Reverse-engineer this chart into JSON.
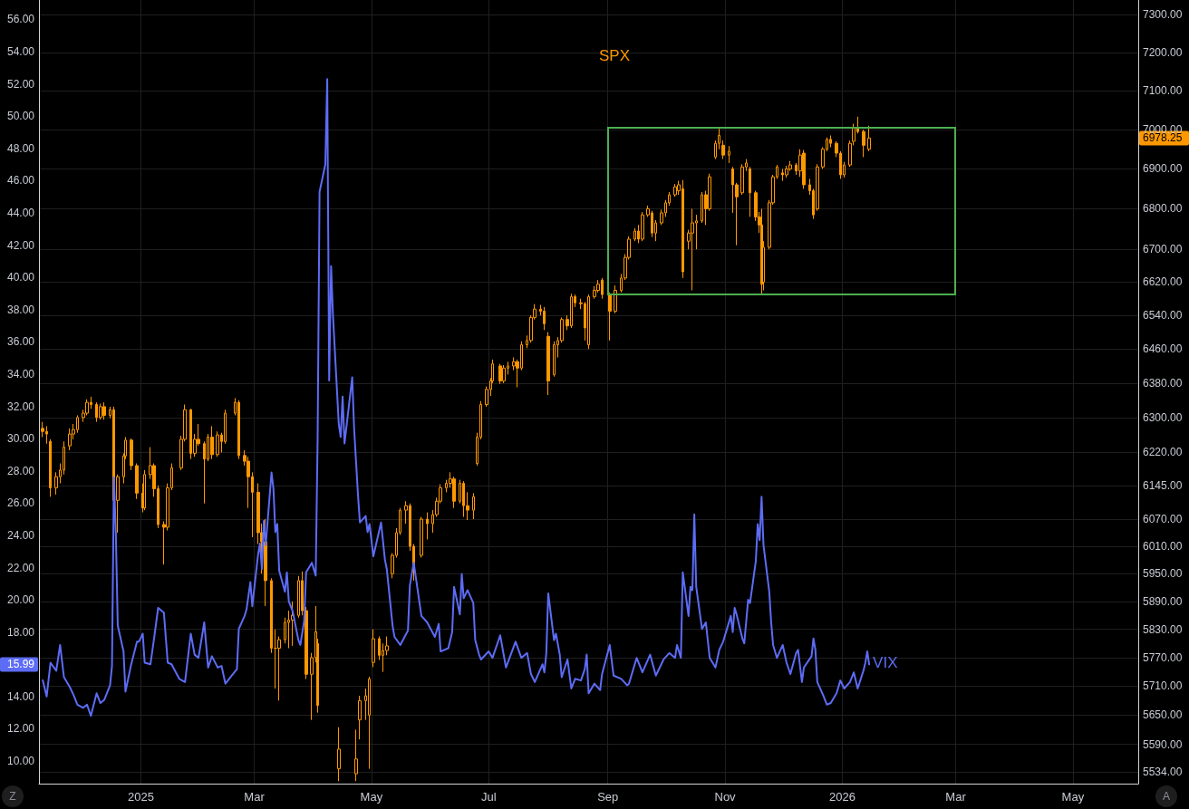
{
  "chart_data": {
    "type": "candlestick",
    "xlim": [
      "2024-11-09",
      "2026-06-04"
    ],
    "xticks": [
      {
        "value": "2025-01-01",
        "label": "2025"
      },
      {
        "value": "2025-03-01",
        "label": "Mar"
      },
      {
        "value": "2025-05-01",
        "label": "May"
      },
      {
        "value": "2025-07-01",
        "label": "Jul"
      },
      {
        "value": "2025-09-01",
        "label": "Sep"
      },
      {
        "value": "2025-11-01",
        "label": "Nov"
      },
      {
        "value": "2026-01-01",
        "label": "2026"
      },
      {
        "value": "2026-03-01",
        "label": "Mar"
      },
      {
        "value": "2026-05-01",
        "label": "May"
      }
    ],
    "ylim": [
      8.6,
      57.2
    ],
    "yticks": [
      {
        "value": 10,
        "label": "10.00"
      },
      {
        "value": 12,
        "label": "12.00"
      },
      {
        "value": 14,
        "label": "14.00"
      },
      15.99,
      {
        "value": 18,
        "label": "18.00"
      },
      {
        "value": 20,
        "label": "20.00"
      },
      {
        "value": 22,
        "label": "22.00"
      },
      {
        "value": 24,
        "label": "24.00"
      },
      {
        "value": 26,
        "label": "26.00"
      },
      {
        "value": 28,
        "label": "28.00"
      },
      {
        "value": 30,
        "label": "30.00"
      },
      {
        "value": 32,
        "label": "32.00"
      },
      {
        "value": 34,
        "label": "34.00"
      },
      {
        "value": 36,
        "label": "36.00"
      },
      {
        "value": 38,
        "label": "38.00"
      },
      {
        "value": 40,
        "label": "40.00"
      },
      {
        "value": 42,
        "label": "42.00"
      },
      {
        "value": 44,
        "label": "44.00"
      },
      {
        "value": 46,
        "label": "46.00"
      },
      {
        "value": 48,
        "label": "48.00"
      },
      {
        "value": 50,
        "label": "50.00"
      },
      {
        "value": 52,
        "label": "52.00"
      },
      {
        "value": 54,
        "label": "54.00"
      },
      {
        "value": 56,
        "label": "56.00"
      }
    ],
    "y2lim": [
      5510,
      7340
    ],
    "y2ticks": [
      {
        "value": 5534,
        "label": "5534.00"
      },
      {
        "value": 5590,
        "label": "5590.00"
      },
      {
        "value": 5650,
        "label": "5650.00"
      },
      {
        "value": 5710,
        "label": "5710.00"
      },
      {
        "value": 5770,
        "label": "5770.00"
      },
      {
        "value": 5830,
        "label": "5830.00"
      },
      {
        "value": 5890,
        "label": "5890.00"
      },
      {
        "value": 5950,
        "label": "5950.00"
      },
      {
        "value": 6010,
        "label": "6010.00"
      },
      {
        "value": 6070,
        "label": "6070.00"
      },
      {
        "value": 6145,
        "label": "6145.00"
      },
      {
        "value": 6220,
        "label": "6220.00"
      },
      {
        "value": 6300,
        "label": "6300.00"
      },
      {
        "value": 6380,
        "label": "6380.00"
      },
      {
        "value": 6460,
        "label": "6460.00"
      },
      {
        "value": 6540,
        "label": "6540.00"
      },
      {
        "value": 6620,
        "label": "6620.00"
      },
      {
        "value": 6700,
        "label": "6700.00"
      },
      {
        "value": 6800,
        "label": "6800.00"
      },
      {
        "value": 6900,
        "label": "6900.00"
      },
      6978.25,
      {
        "value": 7000,
        "label": "7000.00"
      },
      {
        "value": 7100,
        "label": "7100.00"
      },
      {
        "value": 7200,
        "label": "7200.00"
      },
      {
        "value": 7300,
        "label": "7300.00"
      }
    ],
    "log": "y2",
    "grid": true,
    "series": [
      {
        "name": "SPX",
        "axis": "y2",
        "color": "#ff9800",
        "x": [
          "2024-11-11",
          "2024-11-13",
          "2024-11-15",
          "2024-11-18",
          "2024-11-20",
          "2024-11-22",
          "2024-11-25",
          "2024-11-27",
          "2024-11-29",
          "2024-12-02",
          "2024-12-04",
          "2024-12-06",
          "2024-12-09",
          "2024-12-11",
          "2024-12-13",
          "2024-12-16",
          "2024-12-18",
          "2024-12-20",
          "2024-12-23",
          "2024-12-24",
          "2024-12-27",
          "2024-12-30",
          "2025-01-02",
          "2025-01-03",
          "2025-01-06",
          "2025-01-08",
          "2025-01-10",
          "2025-01-13",
          "2025-01-15",
          "2025-01-17",
          "2025-01-22",
          "2025-01-24",
          "2025-01-27",
          "2025-01-29",
          "2025-01-31",
          "2025-02-03",
          "2025-02-05",
          "2025-02-07",
          "2025-02-10",
          "2025-02-12",
          "2025-02-14",
          "2025-02-19",
          "2025-02-21",
          "2025-02-24",
          "2025-02-26",
          "2025-02-28",
          "2025-03-03",
          "2025-03-05",
          "2025-03-07",
          "2025-03-10",
          "2025-03-12",
          "2025-03-14",
          "2025-03-17",
          "2025-03-19",
          "2025-03-21",
          "2025-03-24",
          "2025-03-26",
          "2025-03-28",
          "2025-03-31",
          "2025-04-02",
          "2025-04-03",
          "2025-04-14",
          "2025-04-23",
          "2025-04-25",
          "2025-04-28",
          "2025-04-30",
          "2025-05-02",
          "2025-05-05",
          "2025-05-07",
          "2025-05-09",
          "2025-05-12",
          "2025-05-14",
          "2025-05-16",
          "2025-05-19",
          "2025-05-21",
          "2025-05-23",
          "2025-05-27",
          "2025-05-30",
          "2025-06-02",
          "2025-06-04",
          "2025-06-06",
          "2025-06-09",
          "2025-06-11",
          "2025-06-13",
          "2025-06-16",
          "2025-06-18",
          "2025-06-20",
          "2025-06-23",
          "2025-06-25",
          "2025-06-27",
          "2025-06-30",
          "2025-07-02",
          "2025-07-03",
          "2025-07-07",
          "2025-07-09",
          "2025-07-11",
          "2025-07-14",
          "2025-07-16",
          "2025-07-18",
          "2025-07-21",
          "2025-07-23",
          "2025-07-25",
          "2025-07-28",
          "2025-07-30",
          "2025-08-01",
          "2025-08-04",
          "2025-08-06",
          "2025-08-08",
          "2025-08-11",
          "2025-08-13",
          "2025-08-15",
          "2025-08-18",
          "2025-08-20",
          "2025-08-22",
          "2025-08-25",
          "2025-08-27",
          "2025-08-29",
          "2025-09-02",
          "2025-09-05",
          "2025-09-08",
          "2025-09-10",
          "2025-09-12",
          "2025-09-15",
          "2025-09-17",
          "2025-09-19",
          "2025-09-22",
          "2025-09-24",
          "2025-09-26",
          "2025-09-29",
          "2025-10-01",
          "2025-10-03",
          "2025-10-06",
          "2025-10-08",
          "2025-10-10",
          "2025-10-13",
          "2025-10-15",
          "2025-10-17",
          "2025-10-20",
          "2025-10-22",
          "2025-10-24",
          "2025-10-27",
          "2025-10-29",
          "2025-10-31",
          "2025-11-03",
          "2025-11-05",
          "2025-11-07",
          "2025-11-10",
          "2025-11-12",
          "2025-11-14",
          "2025-11-17",
          "2025-11-19",
          "2025-11-20",
          "2025-11-21",
          "2025-11-24",
          "2025-11-26",
          "2025-11-28",
          "2025-12-01",
          "2025-12-03",
          "2025-12-05",
          "2025-12-08",
          "2025-12-10",
          "2025-12-12",
          "2025-12-15",
          "2025-12-17",
          "2025-12-19",
          "2025-12-22",
          "2025-12-24",
          "2025-12-26",
          "2025-12-29",
          "2025-12-31",
          "2026-01-02",
          "2026-01-05",
          "2026-01-07",
          "2026-01-09",
          "2026-01-12",
          "2026-01-15"
        ],
        "ohlc": [
          [
            6275,
            6290,
            6255,
            6268
          ],
          [
            6268,
            6280,
            6240,
            6262
          ],
          [
            6245,
            6250,
            6120,
            6140
          ],
          [
            6140,
            6175,
            6125,
            6165
          ],
          [
            6165,
            6195,
            6150,
            6180
          ],
          [
            6180,
            6245,
            6170,
            6232
          ],
          [
            6235,
            6275,
            6225,
            6262
          ],
          [
            6262,
            6285,
            6250,
            6272
          ],
          [
            6272,
            6305,
            6265,
            6300
          ],
          [
            6300,
            6318,
            6290,
            6310
          ],
          [
            6310,
            6342,
            6305,
            6335
          ],
          [
            6335,
            6348,
            6320,
            6330
          ],
          [
            6330,
            6335,
            6290,
            6300
          ],
          [
            6300,
            6332,
            6295,
            6325
          ],
          [
            6325,
            6335,
            6295,
            6305
          ],
          [
            6305,
            6325,
            6298,
            6318
          ],
          [
            6318,
            6325,
            6105,
            6112
          ],
          [
            6112,
            6170,
            6040,
            6165
          ],
          [
            6165,
            6218,
            6150,
            6212
          ],
          [
            6212,
            6255,
            6205,
            6248
          ],
          [
            6248,
            6252,
            6180,
            6190
          ],
          [
            6190,
            6195,
            6115,
            6128
          ],
          [
            6128,
            6150,
            6085,
            6095
          ],
          [
            6095,
            6180,
            6090,
            6170
          ],
          [
            6170,
            6232,
            6160,
            6190
          ],
          [
            6190,
            6195,
            6120,
            6138
          ],
          [
            6138,
            6145,
            6050,
            6058
          ],
          [
            6058,
            6065,
            5970,
            6052
          ],
          [
            6052,
            6150,
            6045,
            6140
          ],
          [
            6140,
            6195,
            6135,
            6185
          ],
          [
            6185,
            6258,
            6180,
            6250
          ],
          [
            6250,
            6330,
            6245,
            6318
          ],
          [
            6318,
            6320,
            6205,
            6218
          ],
          [
            6218,
            6262,
            6210,
            6250
          ],
          [
            6250,
            6285,
            6235,
            6240
          ],
          [
            6240,
            6245,
            6105,
            6205
          ],
          [
            6205,
            6262,
            6200,
            6255
          ],
          [
            6255,
            6280,
            6205,
            6215
          ],
          [
            6215,
            6268,
            6210,
            6260
          ],
          [
            6260,
            6265,
            6220,
            6245
          ],
          [
            6245,
            6318,
            6240,
            6310
          ],
          [
            6310,
            6345,
            6305,
            6335
          ],
          [
            6335,
            6340,
            6205,
            6213
          ],
          [
            6213,
            6225,
            6190,
            6200
          ],
          [
            6200,
            6210,
            6095,
            6165
          ],
          [
            6165,
            6175,
            6030,
            6130
          ],
          [
            6130,
            6150,
            6015,
            6040
          ],
          [
            6040,
            6060,
            5950,
            6020
          ],
          [
            6020,
            6070,
            5880,
            5935
          ],
          [
            5935,
            5940,
            5780,
            5790
          ],
          [
            5790,
            5830,
            5705,
            5790
          ],
          [
            5790,
            5815,
            5680,
            5808
          ],
          [
            5808,
            5855,
            5800,
            5845
          ],
          [
            5845,
            5870,
            5790,
            5850
          ],
          [
            5850,
            5890,
            5795,
            5860
          ],
          [
            5860,
            5945,
            5855,
            5935
          ],
          [
            5935,
            5955,
            5860,
            5870
          ],
          [
            5870,
            5878,
            5725,
            5735
          ],
          [
            5735,
            5780,
            5640,
            5770
          ],
          [
            5770,
            5880,
            5760,
            5825
          ],
          [
            5800,
            5810,
            5655,
            5670
          ],
          [
            5540,
            5625,
            5515,
            5580
          ],
          [
            5530,
            5620,
            5515,
            5560
          ],
          [
            5640,
            5690,
            5600,
            5680
          ],
          [
            5680,
            5705,
            5640,
            5690
          ],
          [
            5650,
            5730,
            5540,
            5725
          ],
          [
            5760,
            5830,
            5750,
            5810
          ],
          [
            5810,
            5815,
            5765,
            5775
          ],
          [
            5775,
            5800,
            5740,
            5785
          ],
          [
            5785,
            5815,
            5775,
            5795
          ],
          [
            5950,
            5995,
            5940,
            5990
          ],
          [
            5990,
            6050,
            5985,
            6040
          ],
          [
            6040,
            6095,
            6035,
            6090
          ],
          [
            6090,
            6110,
            6060,
            6100
          ],
          [
            6100,
            6105,
            6000,
            6010
          ],
          [
            6010,
            6015,
            5935,
            5955
          ],
          [
            5990,
            6075,
            5985,
            6070
          ],
          [
            6070,
            6085,
            6025,
            6060
          ],
          [
            6060,
            6090,
            6040,
            6080
          ],
          [
            6080,
            6118,
            6075,
            6110
          ],
          [
            6110,
            6148,
            6105,
            6140
          ],
          [
            6140,
            6158,
            6130,
            6150
          ],
          [
            6150,
            6175,
            6140,
            6160
          ],
          [
            6160,
            6165,
            6095,
            6110
          ],
          [
            6110,
            6158,
            6105,
            6150
          ],
          [
            6150,
            6155,
            6075,
            6100
          ],
          [
            6100,
            6130,
            6068,
            6090
          ],
          [
            6090,
            6128,
            6070,
            6120
          ],
          [
            6195,
            6265,
            6190,
            6255
          ],
          [
            6255,
            6338,
            6250,
            6330
          ],
          [
            6330,
            6372,
            6325,
            6365
          ],
          [
            6365,
            6392,
            6350,
            6385
          ],
          [
            6385,
            6435,
            6380,
            6425
          ],
          [
            6420,
            6425,
            6378,
            6385
          ],
          [
            6385,
            6422,
            6380,
            6415
          ],
          [
            6415,
            6430,
            6400,
            6420
          ],
          [
            6420,
            6440,
            6410,
            6430
          ],
          [
            6430,
            6435,
            6370,
            6415
          ],
          [
            6415,
            6478,
            6410,
            6470
          ],
          [
            6470,
            6492,
            6462,
            6480
          ],
          [
            6480,
            6540,
            6475,
            6535
          ],
          [
            6535,
            6567,
            6530,
            6555
          ],
          [
            6555,
            6565,
            6540,
            6550
          ],
          [
            6550,
            6560,
            6505,
            6520
          ],
          [
            6490,
            6500,
            6352,
            6385
          ],
          [
            6400,
            6478,
            6395,
            6470
          ],
          [
            6470,
            6488,
            6440,
            6480
          ],
          [
            6480,
            6535,
            6475,
            6530
          ],
          [
            6530,
            6540,
            6505,
            6515
          ],
          [
            6515,
            6592,
            6510,
            6585
          ],
          [
            6585,
            6590,
            6560,
            6570
          ],
          [
            6570,
            6580,
            6555,
            6568
          ],
          [
            6568,
            6572,
            6480,
            6510
          ],
          [
            6470,
            6590,
            6460,
            6585
          ],
          [
            6585,
            6610,
            6580,
            6600
          ],
          [
            6600,
            6625,
            6595,
            6615
          ],
          [
            6625,
            6630,
            6580,
            6590
          ],
          [
            6590,
            6595,
            6480,
            6550
          ],
          [
            6550,
            6612,
            6545,
            6600
          ],
          [
            6600,
            6640,
            6595,
            6630
          ],
          [
            6630,
            6688,
            6625,
            6680
          ],
          [
            6680,
            6732,
            6675,
            6725
          ],
          [
            6725,
            6752,
            6720,
            6745
          ],
          [
            6745,
            6760,
            6715,
            6725
          ],
          [
            6725,
            6792,
            6720,
            6785
          ],
          [
            6785,
            6808,
            6780,
            6800
          ],
          [
            6790,
            6795,
            6730,
            6740
          ],
          [
            6740,
            6772,
            6720,
            6765
          ],
          [
            6765,
            6798,
            6760,
            6790
          ],
          [
            6790,
            6822,
            6780,
            6815
          ],
          [
            6815,
            6842,
            6808,
            6835
          ],
          [
            6835,
            6862,
            6830,
            6855
          ],
          [
            6845,
            6870,
            6835,
            6860
          ],
          [
            6850,
            6872,
            6630,
            6645
          ],
          [
            6720,
            6748,
            6700,
            6740
          ],
          [
            6740,
            6800,
            6600,
            6765
          ],
          [
            6765,
            6785,
            6700,
            6770
          ],
          [
            6770,
            6842,
            6765,
            6835
          ],
          [
            6835,
            6845,
            6760,
            6800
          ],
          [
            6800,
            6888,
            6795,
            6880
          ],
          [
            6930,
            6972,
            6925,
            6965
          ],
          [
            6965,
            7002,
            6950,
            6985
          ],
          [
            6960,
            6972,
            6925,
            6935
          ],
          [
            6935,
            6958,
            6915,
            6945
          ],
          [
            6900,
            6905,
            6790,
            6860
          ],
          [
            6860,
            6865,
            6710,
            6830
          ],
          [
            6840,
            6912,
            6835,
            6905
          ],
          [
            6905,
            6925,
            6895,
            6915
          ],
          [
            6900,
            6905,
            6780,
            6840
          ],
          [
            6840,
            6845,
            6770,
            6780
          ],
          [
            6780,
            6792,
            6740,
            6760
          ],
          [
            6760,
            6800,
            6590,
            6615
          ],
          [
            6620,
            6720,
            6600,
            6705
          ],
          [
            6705,
            6822,
            6700,
            6815
          ],
          [
            6815,
            6885,
            6810,
            6880
          ],
          [
            6880,
            6910,
            6875,
            6905
          ],
          [
            6890,
            6900,
            6870,
            6885
          ],
          [
            6885,
            6908,
            6878,
            6900
          ],
          [
            6900,
            6920,
            6895,
            6910
          ],
          [
            6910,
            6915,
            6885,
            6895
          ],
          [
            6895,
            6950,
            6880,
            6935
          ],
          [
            6940,
            6948,
            6850,
            6860
          ],
          [
            6860,
            6875,
            6835,
            6845
          ],
          [
            6845,
            6850,
            6775,
            6785
          ],
          [
            6800,
            6912,
            6795,
            6905
          ],
          [
            6905,
            6955,
            6900,
            6950
          ],
          [
            6950,
            6980,
            6945,
            6975
          ],
          [
            6975,
            6985,
            6955,
            6965
          ],
          [
            6965,
            6970,
            6930,
            6940
          ],
          [
            6940,
            6945,
            6875,
            6885
          ],
          [
            6885,
            6918,
            6878,
            6910
          ],
          [
            6910,
            6972,
            6905,
            6965
          ],
          [
            6970,
            7015,
            6960,
            7005
          ],
          [
            7005,
            7033,
            6990,
            6995
          ],
          [
            6995,
            7000,
            6930,
            6960
          ],
          [
            6950,
            7010,
            6945,
            6978.25
          ]
        ]
      },
      {
        "name": "VIX",
        "type": "line",
        "color": "#5d6cf5",
        "x": [
          "2024-11-11",
          "2024-11-13",
          "2024-11-15",
          "2024-11-18",
          "2024-11-20",
          "2024-11-22",
          "2024-11-25",
          "2024-11-27",
          "2024-11-29",
          "2024-12-02",
          "2024-12-04",
          "2024-12-06",
          "2024-12-09",
          "2024-12-11",
          "2024-12-13",
          "2024-12-16",
          "2024-12-17",
          "2024-12-18",
          "2024-12-19",
          "2024-12-20",
          "2024-12-23",
          "2024-12-24",
          "2024-12-27",
          "2024-12-30",
          "2024-12-31",
          "2025-01-02",
          "2025-01-03",
          "2025-01-06",
          "2025-01-08",
          "2025-01-10",
          "2025-01-13",
          "2025-01-15",
          "2025-01-17",
          "2025-01-21",
          "2025-01-24",
          "2025-01-27",
          "2025-01-29",
          "2025-01-31",
          "2025-02-03",
          "2025-02-05",
          "2025-02-07",
          "2025-02-10",
          "2025-02-12",
          "2025-02-14",
          "2025-02-18",
          "2025-02-20",
          "2025-02-21",
          "2025-02-24",
          "2025-02-25",
          "2025-02-27",
          "2025-02-28",
          "2025-03-03",
          "2025-03-04",
          "2025-03-05",
          "2025-03-06",
          "2025-03-07",
          "2025-03-10",
          "2025-03-11",
          "2025-03-12",
          "2025-03-13",
          "2025-03-14",
          "2025-03-17",
          "2025-03-18",
          "2025-03-19",
          "2025-03-21",
          "2025-03-24",
          "2025-03-25",
          "2025-03-27",
          "2025-03-28",
          "2025-03-31",
          "2025-04-02",
          "2025-04-03",
          "2025-04-04",
          "2025-04-07",
          "2025-04-08",
          "2025-04-09",
          "2025-04-10",
          "2025-04-11",
          "2025-04-14",
          "2025-04-15",
          "2025-04-16",
          "2025-04-17",
          "2025-04-21",
          "2025-04-22",
          "2025-04-24",
          "2025-04-25",
          "2025-04-28",
          "2025-04-29",
          "2025-04-30",
          "2025-05-02",
          "2025-05-06",
          "2025-05-08",
          "2025-05-09",
          "2025-05-12",
          "2025-05-13",
          "2025-05-16",
          "2025-05-20",
          "2025-05-21",
          "2025-05-23",
          "2025-05-27",
          "2025-05-30",
          "2025-06-03",
          "2025-06-05",
          "2025-06-06",
          "2025-06-10",
          "2025-06-12",
          "2025-06-13",
          "2025-06-16",
          "2025-06-17",
          "2025-06-18",
          "2025-06-20",
          "2025-06-23",
          "2025-06-24",
          "2025-06-26",
          "2025-06-27",
          "2025-07-01",
          "2025-07-03",
          "2025-07-07",
          "2025-07-10",
          "2025-07-15",
          "2025-07-18",
          "2025-07-21",
          "2025-07-23",
          "2025-07-25",
          "2025-07-29",
          "2025-07-30",
          "2025-07-31",
          "2025-08-01",
          "2025-08-04",
          "2025-08-05",
          "2025-08-07",
          "2025-08-08",
          "2025-08-11",
          "2025-08-13",
          "2025-08-15",
          "2025-08-18",
          "2025-08-20",
          "2025-08-21",
          "2025-08-22",
          "2025-08-25",
          "2025-08-28",
          "2025-08-29",
          "2025-09-02",
          "2025-09-04",
          "2025-09-08",
          "2025-09-11",
          "2025-09-12",
          "2025-09-16",
          "2025-09-19",
          "2025-09-23",
          "2025-09-26",
          "2025-09-30",
          "2025-10-03",
          "2025-10-06",
          "2025-10-07",
          "2025-10-09",
          "2025-10-10",
          "2025-10-13",
          "2025-10-14",
          "2025-10-15",
          "2025-10-16",
          "2025-10-17",
          "2025-10-20",
          "2025-10-22",
          "2025-10-24",
          "2025-10-27",
          "2025-10-29",
          "2025-10-31",
          "2025-11-04",
          "2025-11-05",
          "2025-11-06",
          "2025-11-07",
          "2025-11-10",
          "2025-11-11",
          "2025-11-13",
          "2025-11-14",
          "2025-11-17",
          "2025-11-18",
          "2025-11-19",
          "2025-11-20",
          "2025-11-21",
          "2025-11-24",
          "2025-11-25",
          "2025-11-26",
          "2025-11-28",
          "2025-12-01",
          "2025-12-03",
          "2025-12-05",
          "2025-12-08",
          "2025-12-09",
          "2025-12-11",
          "2025-12-12",
          "2025-12-16",
          "2025-12-17",
          "2025-12-18",
          "2025-12-19",
          "2025-12-22",
          "2025-12-24",
          "2025-12-26",
          "2025-12-29",
          "2025-12-31",
          "2026-01-02",
          "2026-01-05",
          "2026-01-07",
          "2026-01-09",
          "2026-01-12",
          "2026-01-13",
          "2026-01-14",
          "2026-01-15"
        ],
        "values": [
          15.0,
          14.0,
          16.1,
          15.6,
          17.2,
          15.2,
          14.6,
          14.1,
          13.5,
          13.3,
          13.5,
          12.8,
          14.2,
          13.6,
          13.8,
          14.7,
          15.9,
          27.6,
          24.1,
          18.4,
          16.8,
          14.3,
          16.0,
          17.4,
          17.4,
          17.9,
          16.1,
          16.0,
          17.7,
          19.5,
          19.2,
          16.1,
          16.0,
          15.1,
          14.9,
          17.9,
          16.6,
          16.4,
          18.6,
          15.8,
          16.5,
          15.8,
          15.9,
          14.8,
          15.4,
          15.7,
          18.2,
          19.0,
          19.4,
          21.1,
          19.6,
          22.8,
          23.5,
          21.9,
          24.9,
          23.4,
          27.9,
          26.9,
          24.2,
          24.7,
          21.8,
          20.5,
          21.7,
          19.9,
          19.3,
          17.5,
          17.2,
          18.7,
          21.7,
          22.3,
          21.5,
          30.0,
          45.3,
          47.0,
          52.3,
          33.6,
          40.7,
          37.6,
          30.9,
          30.1,
          32.6,
          29.7,
          33.8,
          30.6,
          26.5,
          24.8,
          25.2,
          24.2,
          24.7,
          22.7,
          24.8,
          22.5,
          21.9,
          18.4,
          17.7,
          17.2,
          18.1,
          20.9,
          22.3,
          19.0,
          18.6,
          17.7,
          18.5,
          16.8,
          17.0,
          18.0,
          20.8,
          19.1,
          21.6,
          20.1,
          20.6,
          19.8,
          17.5,
          16.6,
          16.3,
          16.8,
          16.4,
          17.8,
          15.8,
          17.4,
          16.4,
          16.7,
          15.4,
          14.9,
          16.0,
          15.5,
          16.7,
          20.4,
          17.5,
          17.9,
          16.6,
          15.2,
          16.3,
          14.5,
          15.1,
          15.0,
          15.7,
          16.6,
          14.2,
          14.8,
          14.4,
          15.4,
          17.2,
          15.3,
          15.1,
          14.7,
          14.8,
          16.4,
          15.5,
          16.6,
          15.3,
          16.3,
          16.7,
          16.4,
          17.2,
          16.4,
          21.7,
          19.0,
          20.8,
          20.6,
          25.3,
          20.8,
          18.2,
          18.6,
          16.4,
          15.8,
          16.9,
          17.4,
          19.0,
          18.0,
          19.5,
          19.1,
          17.6,
          17.3,
          20.0,
          19.8,
          22.4,
          24.7,
          23.7,
          26.4,
          23.4,
          20.5,
          18.6,
          17.2,
          16.4,
          17.2,
          16.1,
          15.4,
          16.7,
          16.9,
          14.9,
          15.8,
          16.5,
          17.6,
          16.9,
          14.9,
          14.1,
          13.5,
          13.6,
          14.2,
          15.0,
          14.5,
          14.9,
          15.5,
          14.5,
          15.6,
          16.1,
          16.8,
          15.99
        ]
      }
    ],
    "annotations": [
      "Z",
      "A"
    ]
  }
}
